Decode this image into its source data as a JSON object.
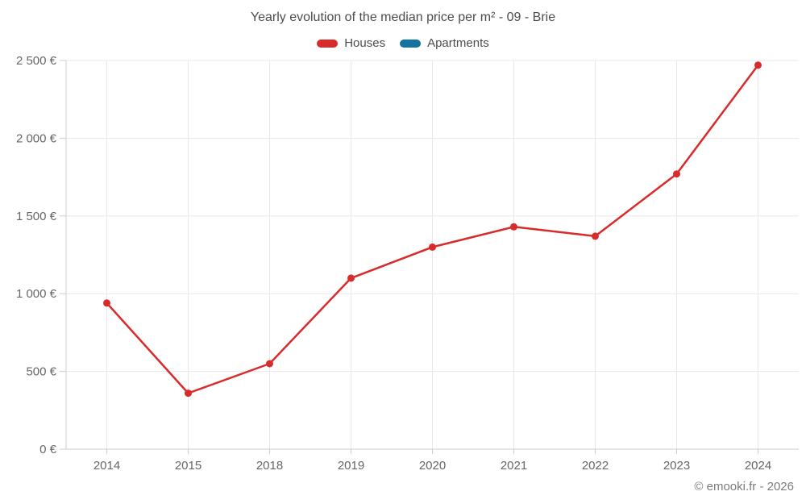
{
  "header": {
    "title": "Yearly evolution of the median price per m² - 09 - Brie"
  },
  "legend": [
    {
      "label": "Houses",
      "color": "#d82c2c"
    },
    {
      "label": "Apartments",
      "color": "#16729e"
    }
  ],
  "footer": {
    "credit": "© emooki.fr - 2026"
  },
  "colors": {
    "grid": "#e8e8e8",
    "axis": "#cccccc",
    "tick_label": "#666666",
    "title": "#4c4c4c"
  },
  "chart_data": {
    "type": "line",
    "title": "Yearly evolution of the median price per m² - 09 - Brie",
    "categories": [
      "2014",
      "2015",
      "2018",
      "2019",
      "2020",
      "2021",
      "2022",
      "2023",
      "2024"
    ],
    "series": [
      {
        "name": "Houses",
        "color": "#d82c2c",
        "values": [
          940,
          360,
          550,
          1100,
          1300,
          1430,
          1370,
          1770,
          2470
        ]
      },
      {
        "name": "Apartments",
        "color": "#16729e",
        "values": []
      }
    ],
    "xlabel": "",
    "ylabel": "",
    "ylim": [
      0,
      2500
    ],
    "ytick_step": 500,
    "yticks": [
      "0 €",
      "500 €",
      "1 000 €",
      "1 500 €",
      "2 000 €",
      "2 500 €"
    ],
    "grid": true,
    "legend_position": "top"
  }
}
